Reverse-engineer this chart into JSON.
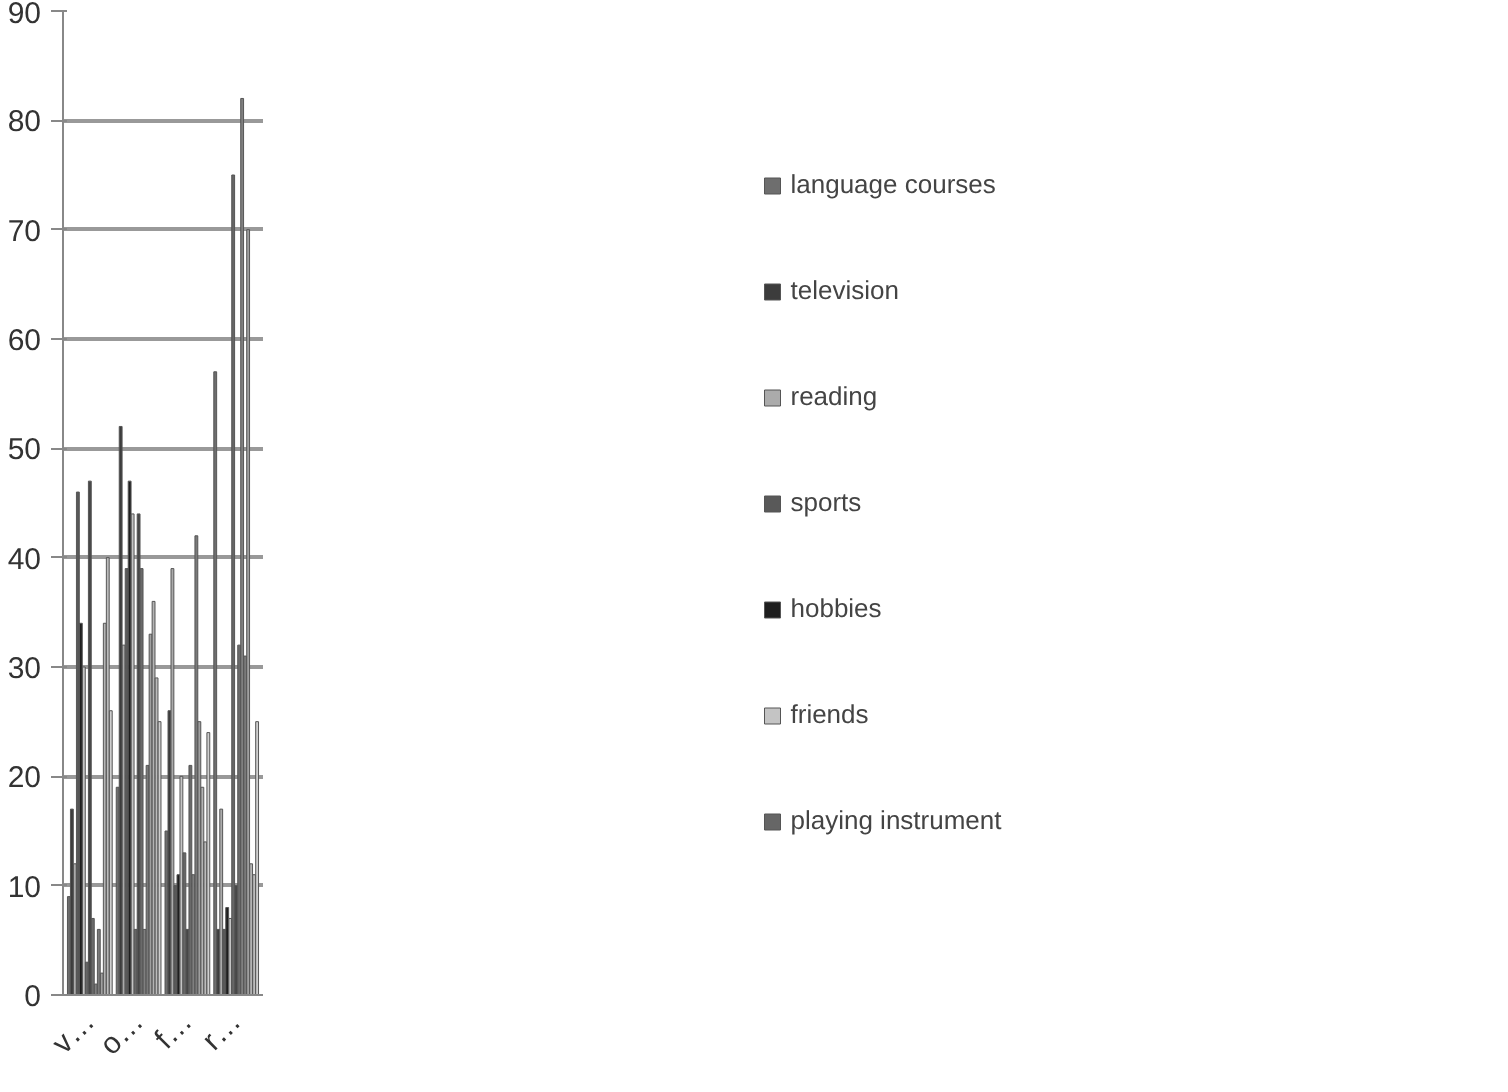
{
  "chart_data": {
    "type": "bar",
    "categories": [
      "v…",
      "o…",
      "f…",
      "r…"
    ],
    "series": [
      {
        "name": "language courses",
        "color": "#6e6e6e",
        "values": [
          9,
          19,
          15,
          57
        ]
      },
      {
        "name": "television",
        "color": "#3c3c3c",
        "values": [
          17,
          52,
          26,
          6
        ]
      },
      {
        "name": "reading",
        "color": "#ababab",
        "values": [
          12,
          32,
          39,
          17
        ]
      },
      {
        "name": "sports",
        "color": "#595959",
        "values": [
          46,
          39,
          10,
          6
        ]
      },
      {
        "name": "hobbies",
        "color": "#1e1e1e",
        "values": [
          34,
          47,
          11,
          8
        ]
      },
      {
        "name": "friends",
        "color": "#c4c4c4",
        "values": [
          30,
          44,
          20,
          7
        ]
      },
      {
        "name": "playing instrument",
        "color": "#666666",
        "values": [
          3,
          6,
          13,
          75
        ]
      },
      {
        "color": "#474747",
        "values": [
          47,
          44,
          6,
          10
        ]
      },
      {
        "color": "#6a6a6a",
        "values": [
          7,
          39,
          21,
          32
        ]
      },
      {
        "color": "#808080",
        "values": [
          1,
          6,
          11,
          82
        ]
      },
      {
        "color": "#7a7a7a",
        "values": [
          6,
          21,
          42,
          31
        ]
      },
      {
        "color": "#a0a0a0",
        "values": [
          2,
          33,
          25,
          70
        ]
      },
      {
        "color": "#b4b4b4",
        "values": [
          34,
          36,
          19,
          12
        ]
      },
      {
        "color": "#bcbcbc",
        "values": [
          40,
          29,
          14,
          11
        ]
      },
      {
        "color": "#cfcfcf",
        "values": [
          26,
          25,
          24,
          25
        ]
      }
    ],
    "ylim": [
      0,
      90
    ],
    "yticks": [
      0,
      10,
      20,
      30,
      40,
      50,
      60,
      70,
      80,
      90
    ],
    "grid": "y",
    "legend": "right"
  }
}
